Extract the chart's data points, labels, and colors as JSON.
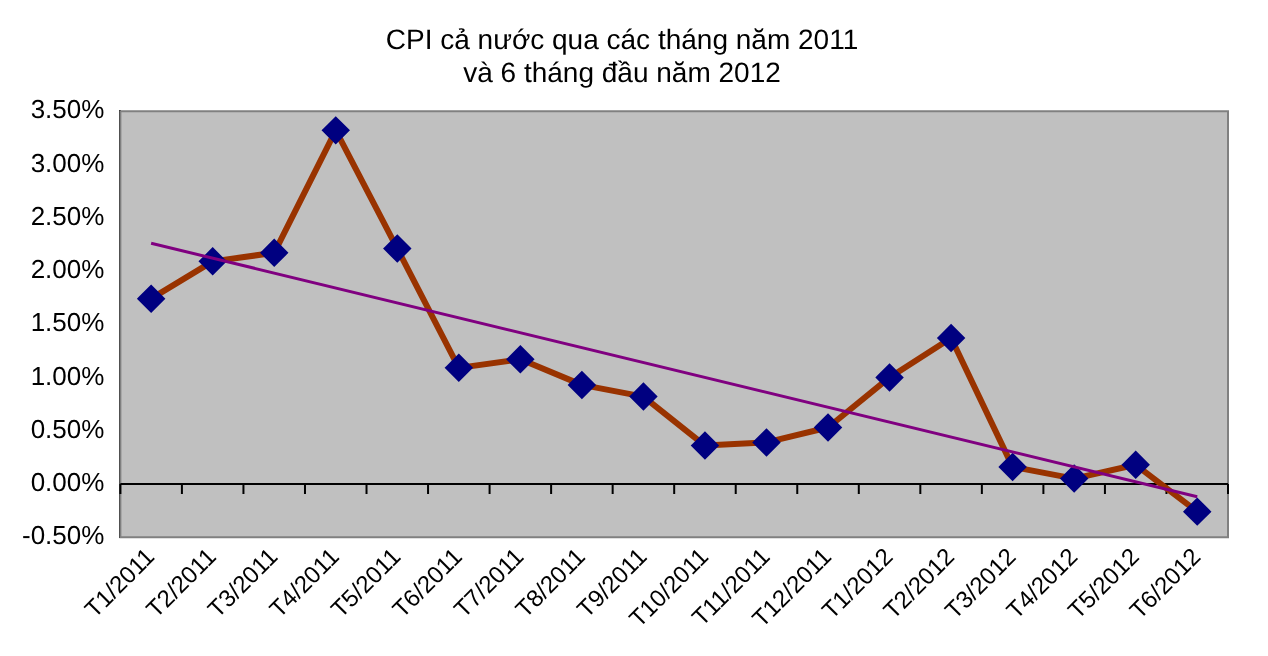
{
  "chart_data": {
    "type": "line",
    "title": "CPI cả nước qua các tháng năm 2011\nvà 6 tháng đầu năm 2012",
    "categories": [
      "T1/2011",
      "T2/2011",
      "T3/2011",
      "T4/2011",
      "T5/2011",
      "T6/2011",
      "T7/2011",
      "T8/2011",
      "T9/2011",
      "T10/2011",
      "T11/2011",
      "T12/2011",
      "T1/2012",
      "T2/2012",
      "T3/2012",
      "T4/2012",
      "T5/2012",
      "T6/2012"
    ],
    "series": [
      {
        "color": "#993300",
        "marker": "diamond",
        "values": [
          1.74,
          2.09,
          2.17,
          3.32,
          2.21,
          1.09,
          1.17,
          0.93,
          0.82,
          0.36,
          0.39,
          0.53,
          1.0,
          1.37,
          0.16,
          0.05,
          0.18,
          -0.26
        ]
      },
      {
        "type": "line",
        "color": "#800080",
        "marker": "none",
        "x": [
          "T1/2011",
          "T6/2012"
        ],
        "values": [
          2.26,
          -0.12
        ]
      }
    ],
    "ylim": [
      -0.5,
      3.5
    ],
    "yticks": [
      {
        "value": -0.5,
        "label": "-0.50%"
      },
      {
        "value": 0,
        "label": "0.00%"
      },
      {
        "value": 0.5,
        "label": "0.50%"
      },
      {
        "value": 1,
        "label": "1.00%"
      },
      {
        "value": 1.5,
        "label": "1.50%"
      },
      {
        "value": 2,
        "label": "2.00%"
      },
      {
        "value": 2.5,
        "label": "2.50%"
      },
      {
        "value": 3,
        "label": "3.00%"
      },
      {
        "value": 3.5,
        "label": "3.50%"
      }
    ],
    "legend": false
  }
}
